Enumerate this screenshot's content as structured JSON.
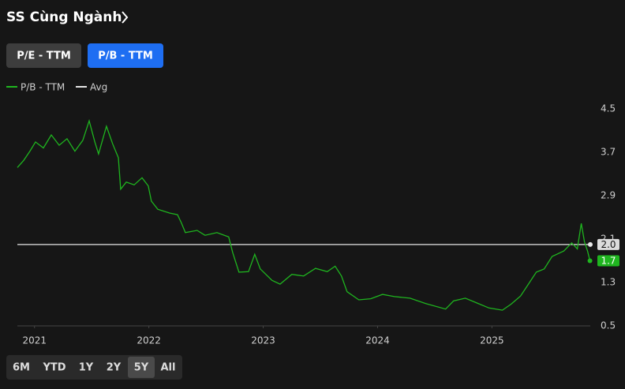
{
  "header": {
    "title": "SS Cùng Ngành"
  },
  "tabs": [
    "P/E - TTM",
    "P/B - TTM"
  ],
  "ranges": [
    "6M",
    "YTD",
    "1Y",
    "2Y",
    "5Y",
    "All"
  ],
  "chart_data": {
    "type": "line",
    "series": [
      {
        "name": "P/B - TTM",
        "color": "#1fb51f",
        "x": [
          2020.85,
          2020.905,
          2020.96,
          2021.009,
          2021.078,
          2021.147,
          2021.216,
          2021.284,
          2021.353,
          2021.422,
          2021.478,
          2021.526,
          2021.56,
          2021.629,
          2021.684,
          2021.733,
          2021.753,
          2021.802,
          2021.871,
          2021.94,
          2021.995,
          2022.022,
          2022.078,
          2022.181,
          2022.25,
          2022.284,
          2022.319,
          2022.422,
          2022.491,
          2022.595,
          2022.698,
          2022.733,
          2022.788,
          2022.871,
          2022.926,
          2022.974,
          2023.077,
          2023.147,
          2023.25,
          2023.353,
          2023.457,
          2023.56,
          2023.629,
          2023.684,
          2023.733,
          2023.836,
          2023.94,
          2024.043,
          2024.147,
          2024.284,
          2024.422,
          2024.595,
          2024.664,
          2024.767,
          2024.871,
          2024.974,
          2025.091,
          2025.167,
          2025.25,
          2025.319,
          2025.388,
          2025.457,
          2025.526,
          2025.629,
          2025.698,
          2025.747,
          2025.781,
          2025.809,
          2025.836,
          2025.857
        ],
        "values": [
          3.42,
          3.55,
          3.72,
          3.89,
          3.78,
          4.02,
          3.83,
          3.95,
          3.72,
          3.92,
          4.28,
          3.9,
          3.67,
          4.18,
          3.85,
          3.6,
          3.02,
          3.15,
          3.1,
          3.23,
          3.08,
          2.8,
          2.65,
          2.58,
          2.55,
          2.4,
          2.22,
          2.26,
          2.17,
          2.22,
          2.14,
          1.85,
          1.49,
          1.5,
          1.82,
          1.55,
          1.34,
          1.27,
          1.45,
          1.42,
          1.56,
          1.5,
          1.6,
          1.42,
          1.13,
          0.98,
          1.0,
          1.08,
          1.04,
          1.01,
          0.91,
          0.81,
          0.96,
          1.01,
          0.92,
          0.83,
          0.79,
          0.9,
          1.05,
          1.27,
          1.49,
          1.55,
          1.78,
          1.88,
          2.03,
          1.92,
          2.39,
          2.05,
          1.88,
          1.7
        ]
      },
      {
        "name": "Avg",
        "color": "#e6e6e6",
        "values": [
          2.0
        ],
        "value_labels": [
          "2.0"
        ]
      }
    ],
    "xlim": [
      2020.85,
      2025.86
    ],
    "xticks": [
      2021,
      2022,
      2023,
      2024,
      2025
    ],
    "ylim": [
      0.5,
      4.5
    ],
    "yticks": [
      0.5,
      1.3,
      2.1,
      2.9,
      3.7,
      4.5
    ],
    "legend": "top-left"
  }
}
